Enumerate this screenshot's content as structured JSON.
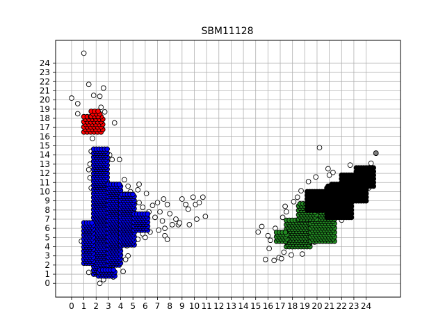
{
  "chart_data": {
    "type": "scatter",
    "title": "SBM11128",
    "xlabel": "",
    "ylabel": "",
    "xlim": [
      -1.3,
      26.8
    ],
    "ylim": [
      -1.5,
      26.5
    ],
    "x_ticks": [
      0,
      1,
      2,
      3,
      4,
      5,
      6,
      7,
      8,
      9,
      10,
      11,
      12,
      13,
      14,
      15,
      16,
      17,
      18,
      19,
      20,
      21,
      22,
      23,
      24
    ],
    "y_ticks": [
      0,
      1,
      2,
      3,
      4,
      5,
      6,
      7,
      8,
      9,
      10,
      11,
      12,
      13,
      14,
      15,
      16,
      17,
      18,
      19,
      20,
      21,
      22,
      23,
      24
    ],
    "grid": true,
    "legend": "none",
    "clusters": [
      {
        "color": "#ff0000",
        "regions": [
          {
            "x": [
              1.0,
              2.6
            ],
            "y": [
              16.5,
              18.2
            ],
            "step": 0.28
          },
          {
            "x": [
              1.6,
              2.3
            ],
            "y": [
              18.2,
              18.9
            ],
            "step": 0.28
          }
        ]
      },
      {
        "color": "#0000ff",
        "regions": [
          {
            "x": [
              1.8,
              3.0
            ],
            "y": [
              1.0,
              14.8
            ],
            "step": 0.22
          },
          {
            "x": [
              1.0,
              1.8
            ],
            "y": [
              2.2,
              6.6
            ],
            "step": 0.22
          },
          {
            "x": [
              3.0,
              4.0
            ],
            "y": [
              2.0,
              11.0
            ],
            "step": 0.22
          },
          {
            "x": [
              4.0,
              5.1
            ],
            "y": [
              4.2,
              9.8
            ],
            "step": 0.22
          },
          {
            "x": [
              5.1,
              6.2
            ],
            "y": [
              5.8,
              7.6
            ],
            "step": 0.22
          },
          {
            "x": [
              2.2,
              3.6
            ],
            "y": [
              0.8,
              1.6
            ],
            "step": 0.22
          }
        ]
      },
      {
        "color": "#228b22",
        "regions": [
          {
            "x": [
              17.5,
              19.5
            ],
            "y": [
              4.0,
              7.0
            ],
            "step": 0.24
          },
          {
            "x": [
              19.5,
              21.5
            ],
            "y": [
              4.6,
              8.0
            ],
            "step": 0.24
          },
          {
            "x": [
              16.7,
              17.6
            ],
            "y": [
              4.6,
              5.6
            ],
            "step": 0.24
          },
          {
            "x": [
              18.5,
              20.0
            ],
            "y": [
              7.0,
              8.8
            ],
            "step": 0.24
          }
        ]
      },
      {
        "color": "#000000",
        "regions": [
          {
            "x": [
              19.2,
              21.6
            ],
            "y": [
              8.0,
              10.0
            ],
            "step": 0.2
          },
          {
            "x": [
              20.8,
              22.8
            ],
            "y": [
              7.2,
              10.6
            ],
            "step": 0.2
          },
          {
            "x": [
              22.0,
              24.0
            ],
            "y": [
              9.0,
              11.8
            ],
            "step": 0.2
          },
          {
            "x": [
              23.2,
              24.6
            ],
            "y": [
              10.6,
              12.6
            ],
            "step": 0.2
          },
          {
            "x": [
              21.2,
              22.4
            ],
            "y": [
              10.0,
              10.8
            ],
            "step": 0.2
          }
        ]
      }
    ],
    "outliers": [
      [
        1.0,
        25.1
      ],
      [
        1.4,
        21.7
      ],
      [
        2.6,
        21.3
      ],
      [
        1.8,
        20.5
      ],
      [
        2.3,
        20.4
      ],
      [
        0.0,
        20.2
      ],
      [
        0.5,
        19.6
      ],
      [
        2.4,
        19.2
      ],
      [
        0.5,
        18.5
      ],
      [
        2.7,
        18.7
      ],
      [
        3.5,
        17.5
      ],
      [
        1.7,
        15.8
      ],
      [
        1.6,
        14.4
      ],
      [
        1.5,
        13.0
      ],
      [
        1.4,
        12.4
      ],
      [
        3.1,
        14.0
      ],
      [
        3.3,
        13.5
      ],
      [
        3.9,
        13.5
      ],
      [
        1.5,
        11.5
      ],
      [
        1.6,
        10.4
      ],
      [
        4.3,
        11.3
      ],
      [
        4.6,
        10.6
      ],
      [
        4.8,
        10.0
      ],
      [
        5.5,
        10.8
      ],
      [
        5.4,
        10.2
      ],
      [
        6.1,
        9.8
      ],
      [
        5.5,
        8.8
      ],
      [
        5.8,
        8.3
      ],
      [
        6.3,
        7.8
      ],
      [
        6.6,
        8.5
      ],
      [
        7.0,
        8.8
      ],
      [
        7.5,
        9.2
      ],
      [
        7.8,
        8.6
      ],
      [
        7.2,
        7.8
      ],
      [
        6.8,
        7.2
      ],
      [
        7.4,
        6.8
      ],
      [
        8.0,
        7.6
      ],
      [
        8.5,
        7.0
      ],
      [
        8.7,
        6.4
      ],
      [
        8.2,
        6.4
      ],
      [
        7.6,
        6.0
      ],
      [
        7.1,
        5.8
      ],
      [
        6.4,
        5.6
      ],
      [
        5.8,
        5.4
      ],
      [
        5.4,
        4.8
      ],
      [
        6.0,
        5.0
      ],
      [
        7.6,
        5.2
      ],
      [
        7.8,
        4.8
      ],
      [
        9.0,
        9.2
      ],
      [
        9.3,
        8.6
      ],
      [
        9.5,
        8.1
      ],
      [
        9.9,
        9.4
      ],
      [
        10.1,
        8.6
      ],
      [
        10.4,
        8.8
      ],
      [
        10.7,
        9.4
      ],
      [
        10.9,
        7.3
      ],
      [
        10.2,
        7.0
      ],
      [
        9.6,
        6.4
      ],
      [
        8.8,
        6.6
      ],
      [
        5.2,
        6.8
      ],
      [
        4.9,
        4.6
      ],
      [
        4.4,
        5.2
      ],
      [
        4.5,
        4.1
      ],
      [
        4.6,
        3.0
      ],
      [
        4.4,
        2.6
      ],
      [
        4.2,
        1.3
      ],
      [
        3.4,
        0.7
      ],
      [
        2.6,
        0.4
      ],
      [
        2.3,
        0.0
      ],
      [
        1.4,
        1.2
      ],
      [
        0.8,
        4.6
      ],
      [
        1.3,
        2.8
      ],
      [
        15.2,
        5.6
      ],
      [
        15.5,
        6.2
      ],
      [
        16.0,
        5.2
      ],
      [
        16.1,
        3.8
      ],
      [
        16.9,
        2.8
      ],
      [
        16.5,
        2.5
      ],
      [
        15.8,
        2.6
      ],
      [
        16.6,
        6.0
      ],
      [
        17.2,
        7.2
      ],
      [
        17.5,
        7.8
      ],
      [
        17.4,
        8.4
      ],
      [
        18.1,
        8.9
      ],
      [
        18.4,
        9.4
      ],
      [
        18.7,
        10.1
      ],
      [
        19.3,
        11.1
      ],
      [
        19.9,
        11.6
      ],
      [
        20.2,
        14.8
      ],
      [
        20.9,
        12.5
      ],
      [
        21.3,
        12.1
      ],
      [
        21.0,
        11.8
      ],
      [
        22.7,
        12.9
      ],
      [
        24.2,
        12.6
      ],
      [
        24.4,
        13.1
      ],
      [
        24.8,
        14.2
      ],
      [
        24.2,
        10.4
      ],
      [
        23.4,
        10.2
      ],
      [
        22.0,
        6.9
      ],
      [
        21.8,
        7.5
      ],
      [
        18.0,
        4.0
      ],
      [
        17.3,
        3.4
      ],
      [
        18.8,
        3.2
      ],
      [
        17.9,
        3.1
      ],
      [
        19.4,
        4.2
      ],
      [
        16.2,
        4.7
      ],
      [
        19.8,
        4.5
      ],
      [
        17.1,
        2.7
      ],
      [
        4.7,
        8.8
      ],
      [
        5.0,
        8.6
      ]
    ],
    "outlier_style": {
      "fill": "#ffffff",
      "stroke": "#000000"
    },
    "special_point": {
      "x": 24.8,
      "y": 14.2,
      "fill": "#808080"
    }
  }
}
